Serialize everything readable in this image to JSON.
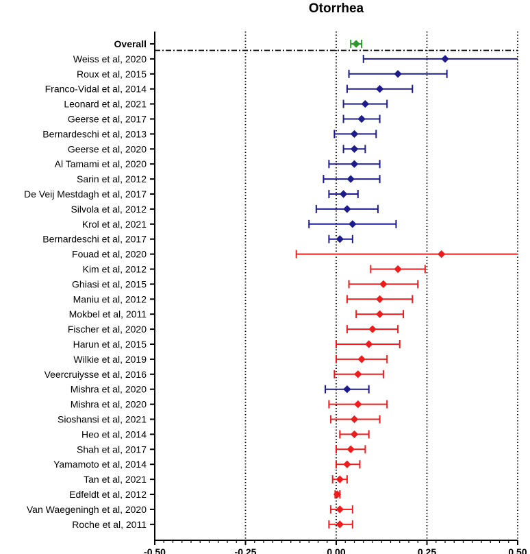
{
  "chart_data": {
    "type": "forest",
    "title": "Otorrhea",
    "xlim": [
      -0.5,
      0.5
    ],
    "x_ticks": [
      "-0.50",
      "-0.25",
      "0.00",
      "0.25",
      "0.50"
    ],
    "x_tick_values": [
      -0.5,
      -0.25,
      0,
      0.25,
      0.5
    ],
    "reference_lines": [
      -0.25,
      0,
      0.25,
      0.5
    ],
    "colors": {
      "overall": "#2e9a2e",
      "blue": "#1c1c8c",
      "red": "#ee1c1c",
      "axis": "#000000"
    },
    "overall": {
      "label": "Overall",
      "estimate": 0.055,
      "lower": 0.04,
      "upper": 0.07
    },
    "studies": [
      {
        "label": "Weiss et al, 2020",
        "estimate": 0.3,
        "lower": 0.075,
        "upper": 0.5,
        "group": "blue"
      },
      {
        "label": "Roux et al, 2015",
        "estimate": 0.17,
        "lower": 0.035,
        "upper": 0.305,
        "group": "blue"
      },
      {
        "label": "Franco-Vidal et al, 2014",
        "estimate": 0.12,
        "lower": 0.03,
        "upper": 0.21,
        "group": "blue"
      },
      {
        "label": "Leonard et al, 2021",
        "estimate": 0.08,
        "lower": 0.02,
        "upper": 0.14,
        "group": "blue"
      },
      {
        "label": "Geerse et al, 2017",
        "estimate": 0.07,
        "lower": 0.02,
        "upper": 0.12,
        "group": "blue"
      },
      {
        "label": "Bernardeschi et al, 2013",
        "estimate": 0.05,
        "lower": -0.005,
        "upper": 0.11,
        "group": "blue"
      },
      {
        "label": "Geerse et al, 2020",
        "estimate": 0.05,
        "lower": 0.02,
        "upper": 0.08,
        "group": "blue"
      },
      {
        "label": "Al Tamami et al, 2020",
        "estimate": 0.05,
        "lower": -0.02,
        "upper": 0.12,
        "group": "blue"
      },
      {
        "label": "Sarin et al, 2012",
        "estimate": 0.04,
        "lower": -0.035,
        "upper": 0.12,
        "group": "blue"
      },
      {
        "label": "De Veij Mestdagh et al, 2017",
        "estimate": 0.02,
        "lower": -0.02,
        "upper": 0.06,
        "group": "blue"
      },
      {
        "label": "Silvola et al, 2012",
        "estimate": 0.03,
        "lower": -0.055,
        "upper": 0.115,
        "group": "blue"
      },
      {
        "label": "Krol et al, 2021",
        "estimate": 0.045,
        "lower": -0.075,
        "upper": 0.165,
        "group": "blue"
      },
      {
        "label": "Bernardeschi et al, 2017",
        "estimate": 0.01,
        "lower": -0.02,
        "upper": 0.045,
        "group": "blue"
      },
      {
        "label": "Fouad et al, 2020",
        "estimate": 0.29,
        "lower": -0.11,
        "upper": 0.5,
        "group": "red"
      },
      {
        "label": "Kim et al, 2012",
        "estimate": 0.17,
        "lower": 0.095,
        "upper": 0.245,
        "group": "red"
      },
      {
        "label": "Ghiasi et al, 2015",
        "estimate": 0.13,
        "lower": 0.035,
        "upper": 0.225,
        "group": "red"
      },
      {
        "label": "Maniu et al, 2012",
        "estimate": 0.12,
        "lower": 0.03,
        "upper": 0.21,
        "group": "red"
      },
      {
        "label": "Mokbel et al, 2011",
        "estimate": 0.12,
        "lower": 0.055,
        "upper": 0.185,
        "group": "red"
      },
      {
        "label": "Fischer et al, 2020",
        "estimate": 0.1,
        "lower": 0.03,
        "upper": 0.17,
        "group": "red"
      },
      {
        "label": "Harun et al, 2015",
        "estimate": 0.09,
        "lower": 0.0,
        "upper": 0.175,
        "group": "red"
      },
      {
        "label": "Wilkie et al, 2019",
        "estimate": 0.07,
        "lower": 0.0,
        "upper": 0.14,
        "group": "red"
      },
      {
        "label": "Veercruiysse et al, 2016",
        "estimate": 0.06,
        "lower": -0.005,
        "upper": 0.13,
        "group": "red"
      },
      {
        "label": "Mishra et al, 2020",
        "estimate": 0.03,
        "lower": -0.03,
        "upper": 0.09,
        "group": "blue"
      },
      {
        "label": "Mishra et al, 2020",
        "estimate": 0.06,
        "lower": -0.02,
        "upper": 0.14,
        "group": "red"
      },
      {
        "label": "Sioshansi et al, 2021",
        "estimate": 0.05,
        "lower": -0.015,
        "upper": 0.12,
        "group": "red"
      },
      {
        "label": "Heo et al, 2014",
        "estimate": 0.05,
        "lower": 0.01,
        "upper": 0.09,
        "group": "red"
      },
      {
        "label": "Shah et al, 2017",
        "estimate": 0.04,
        "lower": 0.0,
        "upper": 0.08,
        "group": "red"
      },
      {
        "label": "Yamamoto et al, 2014",
        "estimate": 0.03,
        "lower": 0.0,
        "upper": 0.065,
        "group": "red"
      },
      {
        "label": "Tan et al, 2021",
        "estimate": 0.01,
        "lower": -0.01,
        "upper": 0.03,
        "group": "red"
      },
      {
        "label": "Edfeldt et al, 2012",
        "estimate": 0.003,
        "lower": -0.003,
        "upper": 0.01,
        "group": "red"
      },
      {
        "label": "Van Waegeningh et al, 2020",
        "estimate": 0.01,
        "lower": -0.015,
        "upper": 0.045,
        "group": "red"
      },
      {
        "label": "Roche et al, 2011",
        "estimate": 0.01,
        "lower": -0.02,
        "upper": 0.045,
        "group": "red"
      }
    ]
  }
}
